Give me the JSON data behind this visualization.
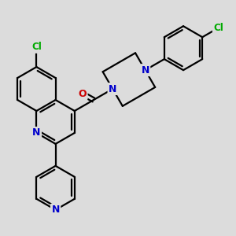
{
  "bg_color": "#dcdcdc",
  "bond_color": "#000000",
  "atom_colors": {
    "N": "#0000cc",
    "O": "#cc0000",
    "Cl": "#00aa00"
  },
  "fig_size": [
    3.0,
    3.0
  ],
  "dpi": 100,
  "lw": 1.6,
  "dbo": 0.08,
  "fs": 9.0
}
